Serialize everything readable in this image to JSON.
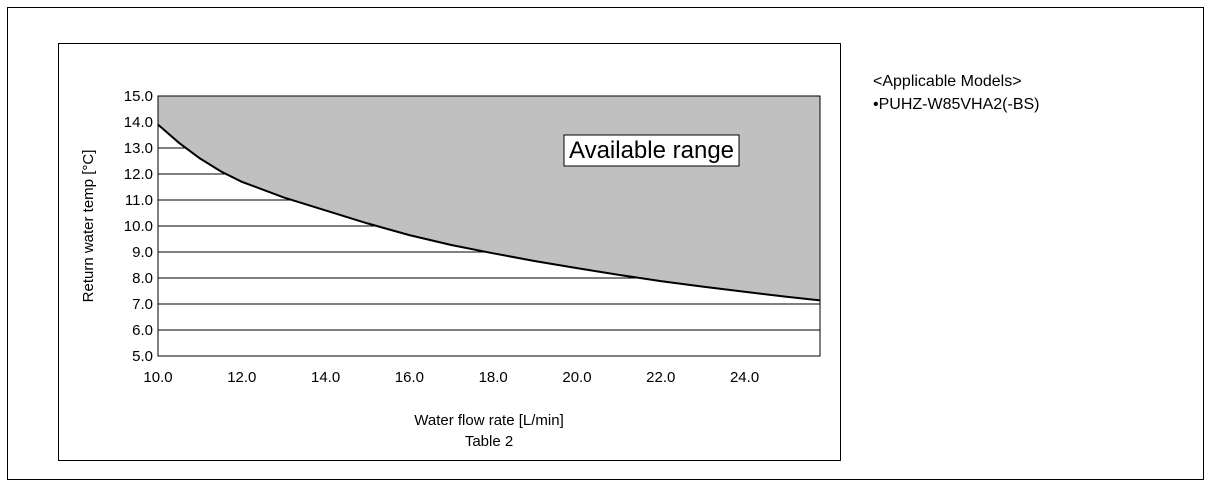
{
  "chart_data": {
    "type": "area",
    "caption": "Table 2",
    "xlabel": "Water flow rate [L/min]",
    "ylabel": "Return water temp [°C]",
    "xlim": [
      10.0,
      25.8
    ],
    "ylim": [
      5.0,
      15.0
    ],
    "x_ticks": [
      "10.0",
      "12.0",
      "14.0",
      "16.0",
      "18.0",
      "20.0",
      "22.0",
      "24.0"
    ],
    "y_ticks": [
      "5.0",
      "6.0",
      "7.0",
      "8.0",
      "9.0",
      "10.0",
      "11.0",
      "12.0",
      "13.0",
      "14.0",
      "15.0"
    ],
    "grid": "horizontal",
    "annotation": "Available range",
    "fill_color": "#c0c0c0",
    "line_color": "#000000",
    "series": [
      {
        "x": [
          10.0,
          10.5,
          11.0,
          11.5,
          12.0,
          13.0,
          14.0,
          15.0,
          16.0,
          17.0,
          18.0,
          19.0,
          20.0,
          21.0,
          22.0,
          23.0,
          24.0,
          25.0,
          25.8
        ],
        "y": [
          13.9,
          13.2,
          12.6,
          12.1,
          11.7,
          11.1,
          10.6,
          10.1,
          9.65,
          9.27,
          8.95,
          8.65,
          8.38,
          8.12,
          7.88,
          7.67,
          7.47,
          7.28,
          7.14
        ]
      }
    ]
  },
  "models": {
    "heading": "<Applicable Models>",
    "items": [
      "•PUHZ-W85VHA2(-BS)"
    ]
  }
}
